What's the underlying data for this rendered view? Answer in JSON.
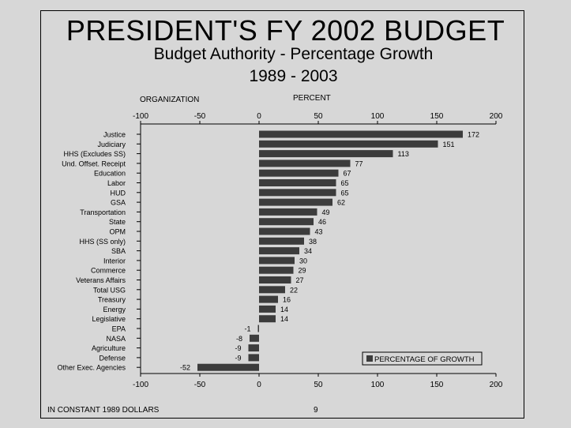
{
  "header": {
    "title": "PRESIDENT'S FY 2002 BUDGET",
    "subtitle": "Budget Authority - Percentage Growth",
    "years": "1989 - 2003",
    "org_label": "ORGANIZATION",
    "percent_label": "PERCENT"
  },
  "footer": {
    "note": "IN CONSTANT 1989 DOLLARS",
    "page_number": "9"
  },
  "colors": {
    "background": "#d7d7d7",
    "bar": "#3c3c3c",
    "axis": "#000000"
  },
  "chart_data": {
    "type": "bar",
    "orientation": "horizontal",
    "title": "PRESIDENT'S FY 2002 BUDGET",
    "subtitle": "Budget Authority - Percentage Growth 1989 - 2003",
    "xlabel": "PERCENT",
    "ylabel": "ORGANIZATION",
    "xlim": [
      -100,
      200
    ],
    "xticks": [
      -100,
      -50,
      0,
      50,
      100,
      150,
      200
    ],
    "legend": {
      "label": "PERCENTAGE OF GROWTH",
      "position": "bottom-right"
    },
    "categories": [
      "Justice",
      "Judiciary",
      "HHS (Excludes SS)",
      "Und. Offset. Receipt",
      "Education",
      "Labor",
      "HUD",
      "GSA",
      "Transportation",
      "State",
      "OPM",
      "HHS (SS only)",
      "SBA",
      "Interior",
      "Commerce",
      "Veterans Affairs",
      "Total USG",
      "Treasury",
      "Energy",
      "Legislative",
      "EPA",
      "NASA",
      "Agriculture",
      "Defense",
      "Other Exec. Agencies"
    ],
    "values": [
      172,
      151,
      113,
      77,
      67,
      65,
      65,
      62,
      49,
      46,
      43,
      38,
      34,
      30,
      29,
      27,
      22,
      16,
      14,
      14,
      -1,
      -8,
      -9,
      -9,
      -52
    ]
  }
}
